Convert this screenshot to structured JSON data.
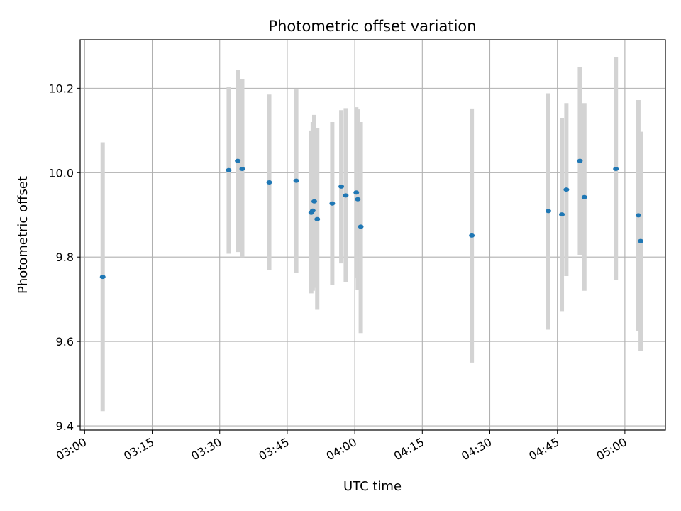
{
  "chart_data": {
    "type": "scatter",
    "title": "Photometric offset variation",
    "xlabel": "UTC time",
    "ylabel": "Photometric offset",
    "x_ticks": [
      "03:00",
      "03:15",
      "03:30",
      "03:45",
      "04:00",
      "04:15",
      "04:30",
      "04:45",
      "05:00"
    ],
    "y_ticks": [
      "9.4",
      "9.6",
      "9.8",
      "10.0",
      "10.2"
    ],
    "xlim": [
      "02:59",
      "05:09"
    ],
    "ylim": [
      9.39,
      10.315
    ],
    "grid": true,
    "marker_color": "#1f77b4",
    "errorbar_color": "#d3d3d3",
    "points": [
      {
        "x": "03:04",
        "y": 9.753,
        "ylow": 9.435,
        "yhigh": 10.072
      },
      {
        "x": "03:32",
        "y": 10.006,
        "ylow": 9.808,
        "yhigh": 10.203
      },
      {
        "x": "03:34",
        "y": 10.028,
        "ylow": 9.812,
        "yhigh": 10.243
      },
      {
        "x": "03:35",
        "y": 10.009,
        "ylow": 9.8,
        "yhigh": 10.222
      },
      {
        "x": "03:41",
        "y": 9.977,
        "ylow": 9.77,
        "yhigh": 10.185
      },
      {
        "x": "03:47",
        "y": 9.981,
        "ylow": 9.763,
        "yhigh": 10.197
      },
      {
        "x": "03:50:20",
        "y": 9.905,
        "ylow": 9.714,
        "yhigh": 10.1
      },
      {
        "x": "03:50:40",
        "y": 9.91,
        "ylow": 9.72,
        "yhigh": 10.12
      },
      {
        "x": "03:51",
        "y": 9.932,
        "ylow": 9.727,
        "yhigh": 10.137
      },
      {
        "x": "03:51:40",
        "y": 9.89,
        "ylow": 9.675,
        "yhigh": 10.105
      },
      {
        "x": "03:55",
        "y": 9.927,
        "ylow": 9.733,
        "yhigh": 10.12
      },
      {
        "x": "03:57",
        "y": 9.967,
        "ylow": 9.785,
        "yhigh": 10.148
      },
      {
        "x": "03:58",
        "y": 9.946,
        "ylow": 9.74,
        "yhigh": 10.153
      },
      {
        "x": "04:00:20",
        "y": 9.953,
        "ylow": 9.75,
        "yhigh": 10.155
      },
      {
        "x": "04:00:40",
        "y": 9.937,
        "ylow": 9.722,
        "yhigh": 10.15
      },
      {
        "x": "04:01:20",
        "y": 9.872,
        "ylow": 9.62,
        "yhigh": 10.12
      },
      {
        "x": "04:26",
        "y": 9.851,
        "ylow": 9.55,
        "yhigh": 10.152
      },
      {
        "x": "04:43",
        "y": 9.909,
        "ylow": 9.628,
        "yhigh": 10.188
      },
      {
        "x": "04:46",
        "y": 9.901,
        "ylow": 9.672,
        "yhigh": 10.13
      },
      {
        "x": "04:47",
        "y": 9.96,
        "ylow": 9.755,
        "yhigh": 10.165
      },
      {
        "x": "04:50",
        "y": 10.028,
        "ylow": 9.805,
        "yhigh": 10.25
      },
      {
        "x": "04:51",
        "y": 9.942,
        "ylow": 9.72,
        "yhigh": 10.165
      },
      {
        "x": "04:58",
        "y": 10.009,
        "ylow": 9.745,
        "yhigh": 10.273
      },
      {
        "x": "05:03",
        "y": 9.899,
        "ylow": 9.625,
        "yhigh": 10.172
      },
      {
        "x": "05:03:30",
        "y": 9.838,
        "ylow": 9.578,
        "yhigh": 10.097
      }
    ]
  }
}
